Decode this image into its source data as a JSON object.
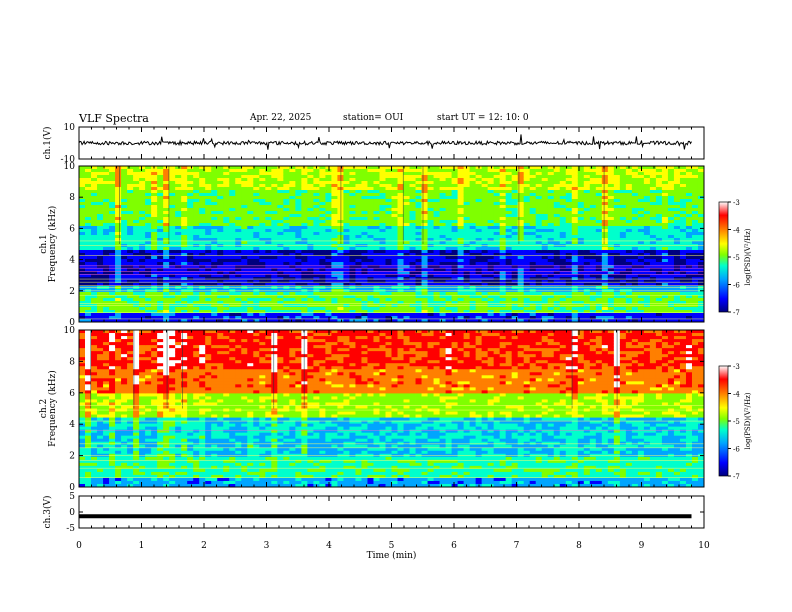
{
  "header": {
    "title": "VLF Spectra",
    "date": "Apr. 22, 2025",
    "station": "station= OUI",
    "start": "start  UT =   12: 10: 0"
  },
  "colors": {
    "spectrum": [
      "#00007f",
      "#0000ff",
      "#00a5ff",
      "#00ffcc",
      "#7fff00",
      "#ffff00",
      "#ff7f00",
      "#ff0000",
      "#ffffff"
    ],
    "trace": "#000000"
  },
  "chart_data": [
    {
      "type": "line",
      "panel": "ch1-waveform",
      "ylabel": "ch.1(V)",
      "ylim": [
        -10,
        10
      ],
      "yticks": [
        "10",
        "-10"
      ],
      "baseline": 0
    },
    {
      "type": "heatmap",
      "panel": "ch1-spectrogram",
      "ylabel": "ch.1\nFrequency (kHz)",
      "ylim": [
        0,
        10
      ],
      "yticks": [
        "0",
        "2",
        "4",
        "6",
        "8",
        "10"
      ],
      "xlim": [
        0,
        10
      ],
      "colorbar": {
        "label": "log(PSD)(V²/Hz)",
        "range": [
          -7,
          -3
        ],
        "ticks": [
          "-3",
          "-4",
          "-5",
          "-6",
          "-7"
        ]
      },
      "horizontal_lines_khz": [
        0.2,
        0.6,
        1.05,
        1.2,
        1.7,
        2.0,
        2.2,
        2.35,
        2.55,
        2.75,
        3.05,
        3.25,
        3.45,
        3.6,
        4.25,
        4.9,
        5.2
      ]
    },
    {
      "type": "heatmap",
      "panel": "ch2-spectrogram",
      "ylabel": "ch.2\nFrequency (kHz)",
      "ylim": [
        0,
        10
      ],
      "yticks": [
        "0",
        "2",
        "4",
        "6",
        "8",
        "10"
      ],
      "xlim": [
        0,
        10
      ],
      "colorbar": {
        "label": "log(PSD)(V²/Hz)",
        "range": [
          -7,
          -3
        ],
        "ticks": [
          "-3",
          "-4",
          "-5",
          "-6",
          "-7"
        ]
      },
      "horizontal_lines_khz": [
        0.6,
        1.2,
        1.7,
        2.0,
        2.5,
        2.75,
        3.6,
        4.2,
        4.9,
        5.2
      ]
    },
    {
      "type": "line",
      "panel": "ch3-waveform",
      "ylabel": "ch.3(V)",
      "ylim": [
        -5,
        5
      ],
      "yticks": [
        "5",
        "0",
        "-5"
      ],
      "baseline": -1.3,
      "xlabel": "Time (min)",
      "xlim": [
        0,
        10
      ],
      "xticks": [
        "0",
        "1",
        "2",
        "3",
        "4",
        "5",
        "6",
        "7",
        "8",
        "9",
        "10"
      ]
    }
  ]
}
